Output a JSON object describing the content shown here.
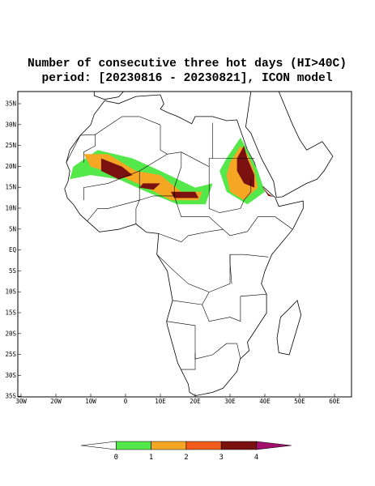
{
  "title": [
    "Number of consecutive three hot days (HI>40C)",
    "period: [20230816 - 20230821], ICON model"
  ],
  "map": {
    "lat_labels": [
      "35N",
      "30N",
      "25N",
      "20N",
      "15N",
      "10N",
      "5N",
      "EQ",
      "5S",
      "10S",
      "15S",
      "20S",
      "25S",
      "30S",
      "35S"
    ],
    "lon_labels": [
      "30W",
      "20W",
      "10W",
      "0",
      "10E",
      "20E",
      "30E",
      "40E",
      "50E",
      "60E"
    ]
  },
  "colorbar": {
    "labels": [
      "0",
      "1",
      "2",
      "3",
      "4"
    ],
    "colors": [
      "#ffffff",
      "#55e84a",
      "#f5a623",
      "#f25c1a",
      "#7b1010",
      "#a3106c"
    ]
  }
}
